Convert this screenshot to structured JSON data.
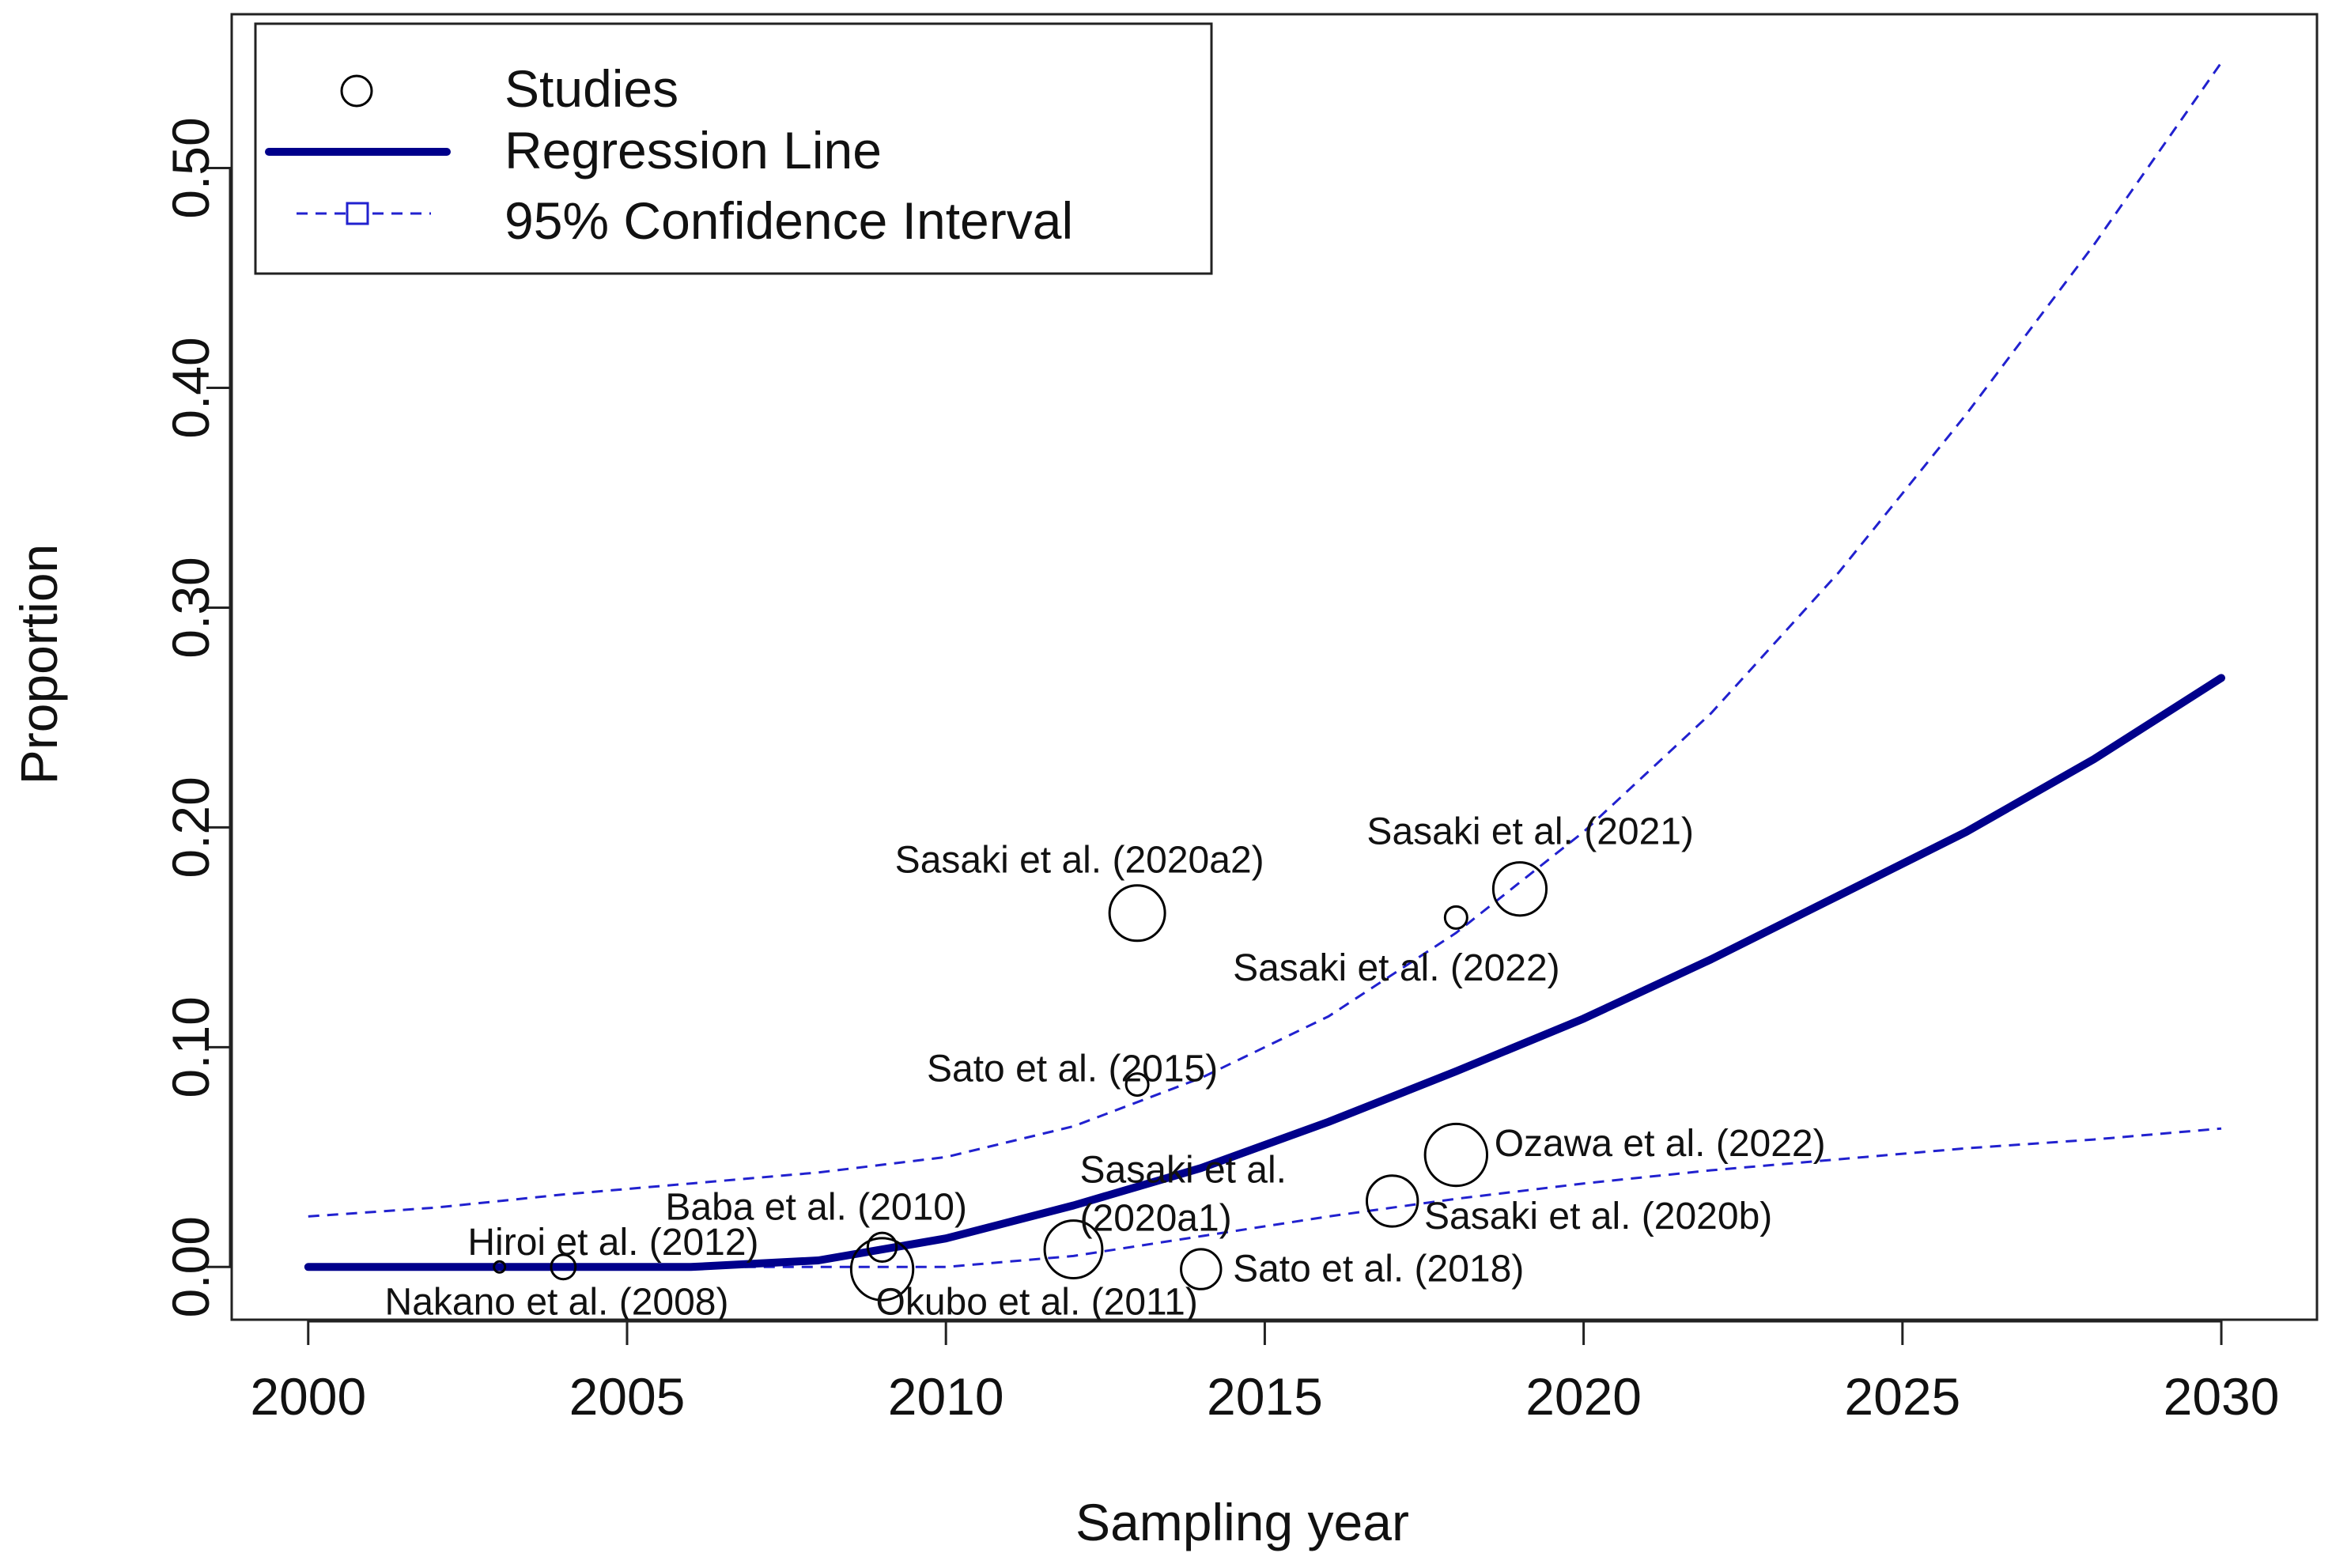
{
  "chart_data": {
    "type": "scatter",
    "title": "",
    "xlabel": "Sampling year",
    "ylabel": "Proportion",
    "xlim": [
      1998.8,
      2031.5
    ],
    "ylim": [
      -0.024,
      0.57
    ],
    "x_ticks": [
      2000,
      2005,
      2010,
      2015,
      2020,
      2025,
      2030
    ],
    "x_tick_labels": [
      "2000",
      "2005",
      "2010",
      "2015",
      "2020",
      "2025",
      "2030"
    ],
    "y_ticks": [
      0.0,
      0.1,
      0.2,
      0.3,
      0.4,
      0.5
    ],
    "y_tick_labels": [
      "0.00",
      "0.10",
      "0.20",
      "0.30",
      "0.40",
      "0.50"
    ],
    "legend": {
      "position": "top-left",
      "entries": [
        "Studies",
        "Regression Line",
        "95% Confidence Interval"
      ]
    },
    "series": [
      {
        "name": "Studies",
        "points": [
          {
            "label": "Nakano et al. (2008)",
            "x": 2003,
            "y": 0.0,
            "size": 0.5,
            "label_x": 2001.2,
            "label_y": -0.016
          },
          {
            "label": "Hiroi et al. (2012)",
            "x": 2004,
            "y": 0.0,
            "size": 1.1,
            "label_x": 2002.5,
            "label_y": 0.011
          },
          {
            "label": "Baba et al. (2010)",
            "x": 2009,
            "y": 0.009,
            "size": 1.3,
            "label_x": 2005.6,
            "label_y": 0.027
          },
          {
            "label": "Okubo et al. (2011)",
            "x": 2009,
            "y": -0.001,
            "size": 2.8,
            "label_x": 2008.9,
            "label_y": -0.016
          },
          {
            "label": "Sasaki et al.",
            "x": 2012,
            "y": 0.008,
            "size": 2.6,
            "label_x": 2012.1,
            "label_y": 0.044
          },
          {
            "label": "(2020a1)",
            "x": 2012,
            "y": 0.008,
            "size": 2.6,
            "label_x": 2012.1,
            "label_y": 0.022
          },
          {
            "label": "Sato et al. (2015)",
            "x": 2013,
            "y": 0.083,
            "size": 1.0,
            "label_x": 2009.7,
            "label_y": 0.09
          },
          {
            "label": "Sasaki et al. (2020a2)",
            "x": 2013,
            "y": 0.161,
            "size": 2.5,
            "label_x": 2009.2,
            "label_y": 0.185
          },
          {
            "label": "Sato et al. (2018)",
            "x": 2014,
            "y": -0.001,
            "size": 1.8,
            "label_x": 2014.5,
            "label_y": -0.001
          },
          {
            "label": "Sasaki et al. (2020b)",
            "x": 2017,
            "y": 0.03,
            "size": 2.3,
            "label_x": 2017.5,
            "label_y": 0.023
          },
          {
            "label": "Ozawa et al. (2022)",
            "x": 2018,
            "y": 0.051,
            "size": 2.8,
            "label_x": 2018.6,
            "label_y": 0.056
          },
          {
            "label": "Sasaki et al. (2022)",
            "x": 2018,
            "y": 0.159,
            "size": 1.0,
            "label_x": 2014.5,
            "label_y": 0.136
          },
          {
            "label": "Sasaki et al. (2021)",
            "x": 2019,
            "y": 0.172,
            "size": 2.4,
            "label_x": 2016.6,
            "label_y": 0.198
          }
        ]
      },
      {
        "name": "Regression Line",
        "x": [
          2000,
          2002,
          2004,
          2006,
          2008,
          2010,
          2012,
          2014,
          2016,
          2018,
          2020,
          2022,
          2024,
          2026,
          2028,
          2030
        ],
        "y": [
          0.0,
          0.0,
          0.0,
          0.0,
          0.003,
          0.013,
          0.028,
          0.045,
          0.066,
          0.089,
          0.113,
          0.14,
          0.169,
          0.198,
          0.231,
          0.268
        ]
      },
      {
        "name": "95% Confidence Interval (upper)",
        "x": [
          2000,
          2002,
          2004,
          2006,
          2008,
          2010,
          2012,
          2014,
          2016,
          2018,
          2020,
          2022,
          2024,
          2026,
          2028,
          2030
        ],
        "y": [
          0.023,
          0.027,
          0.033,
          0.038,
          0.043,
          0.05,
          0.064,
          0.086,
          0.114,
          0.152,
          0.198,
          0.252,
          0.316,
          0.388,
          0.465,
          0.548
        ]
      },
      {
        "name": "95% Confidence Interval (lower)",
        "x": [
          2000,
          2002,
          2004,
          2006,
          2008,
          2010,
          2012,
          2014,
          2016,
          2018,
          2020,
          2022,
          2024,
          2026,
          2028,
          2030
        ],
        "y": [
          0.0,
          0.0,
          0.0,
          0.0,
          0.0,
          0.0,
          0.005,
          0.014,
          0.023,
          0.031,
          0.038,
          0.044,
          0.049,
          0.054,
          0.058,
          0.063
        ]
      }
    ],
    "colors": {
      "regression": "#00008B",
      "ci": "#2121CF",
      "points": "#000000"
    }
  }
}
